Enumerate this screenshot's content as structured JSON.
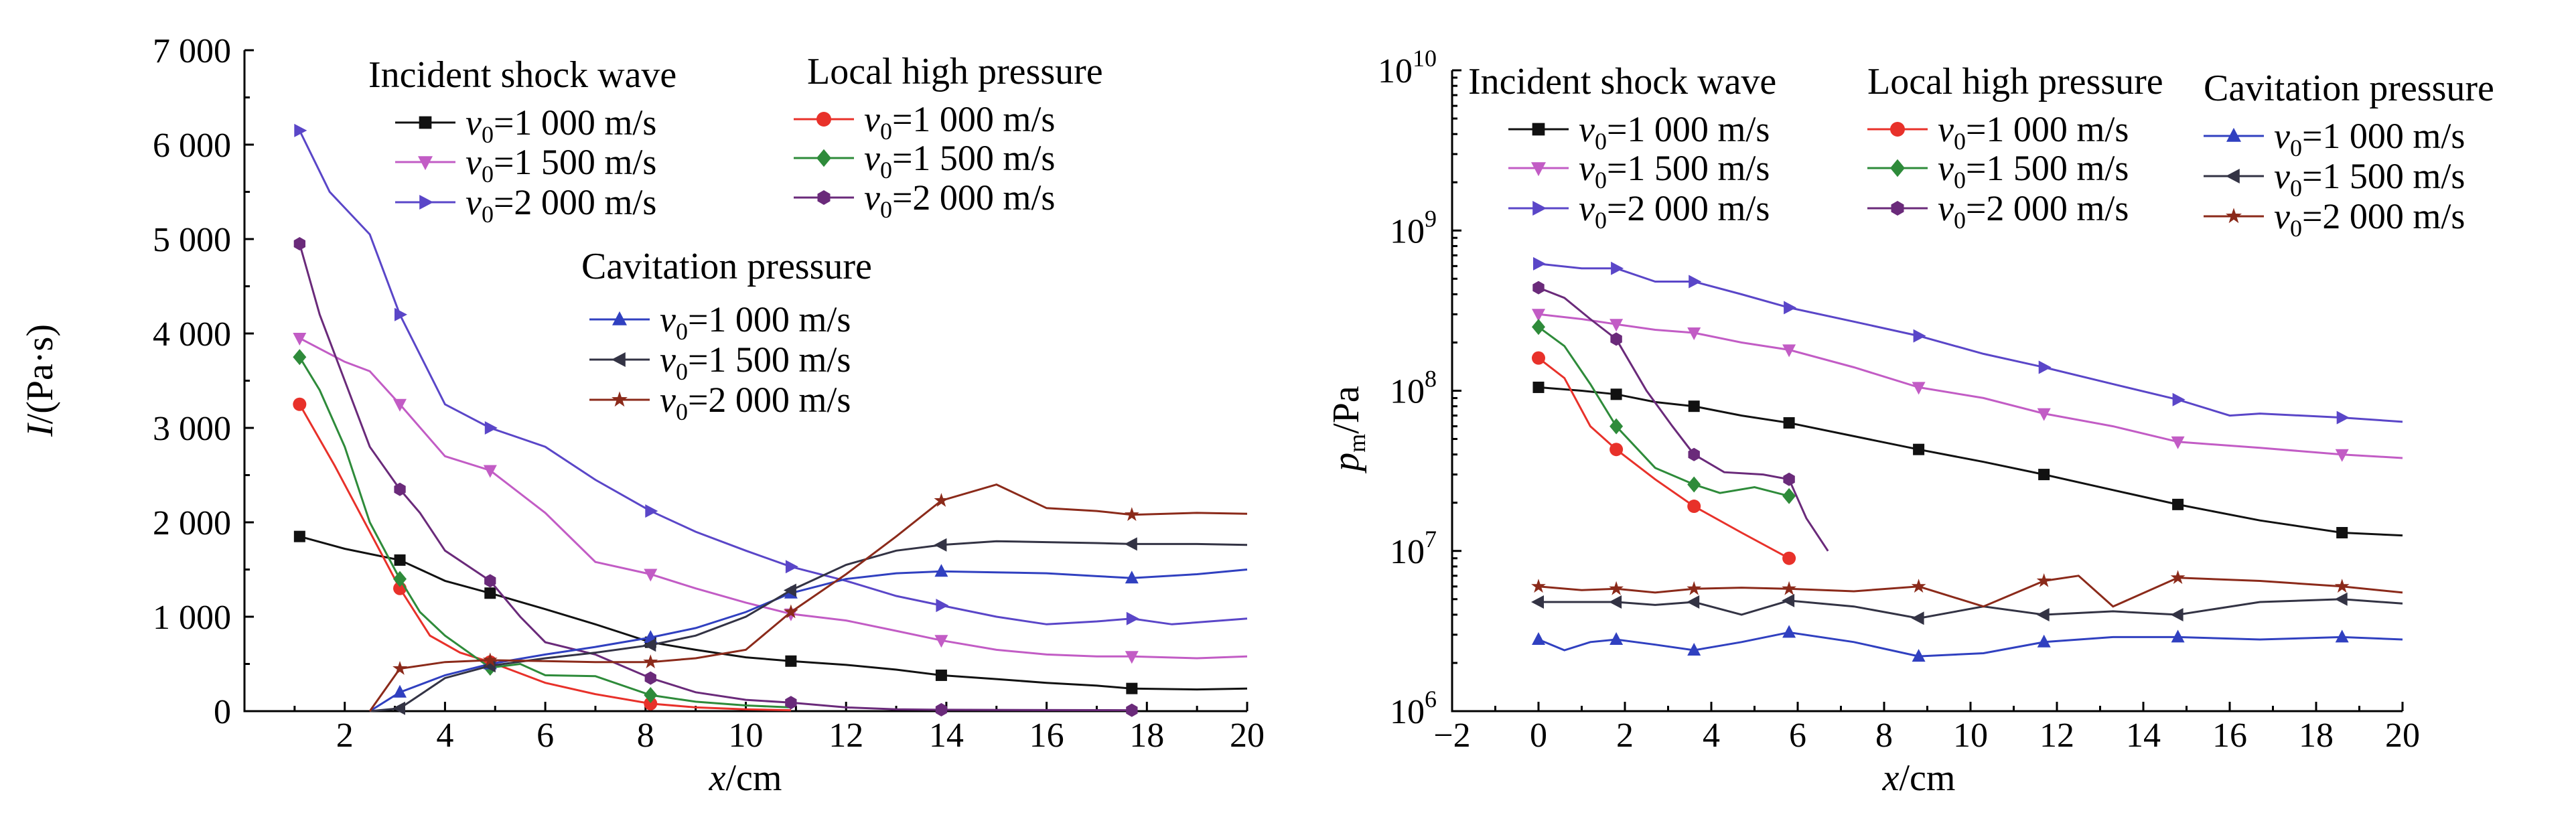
{
  "colors": {
    "black": "#111111",
    "magenta": "#c25cc5",
    "blue_purple": "#5a46c8",
    "red": "#e8312a",
    "green": "#2e8b3a",
    "purple": "#6a2a7a",
    "blue": "#3040c0",
    "dark": "#333344",
    "brown": "#8b2a1a"
  },
  "chart_data": [
    {
      "type": "line",
      "xlabel": "x/cm",
      "ylabel": "I/(Pa·s)",
      "xlim": [
        0,
        20
      ],
      "ylim": [
        0,
        7000
      ],
      "xticks": [
        "2",
        "4",
        "6",
        "8",
        "10",
        "12",
        "14",
        "16",
        "18",
        "20"
      ],
      "yticks": [
        "0",
        "1 000",
        "2 000",
        "3 000",
        "4 000",
        "5 000",
        "6 000",
        "7 000"
      ],
      "legend_groups": [
        {
          "title": "Incident shock wave",
          "entries": [
            "v0=1 000 m/s",
            "v0=1 500 m/s",
            "v0=2 000 m/s"
          ]
        },
        {
          "title": "Local high pressure",
          "entries": [
            "v0=1 000 m/s",
            "v0=1 500 m/s",
            "v0=2 000 m/s"
          ]
        },
        {
          "title": "Cavitation pressure",
          "entries": [
            "v0=1 000 m/s",
            "v0=1 500 m/s",
            "v0=2 000 m/s"
          ]
        }
      ],
      "series": [
        {
          "group": "Incident shock wave",
          "color": "#111111",
          "marker": "square",
          "markers_at": [
            1.1,
            3.1,
            4.9,
            8.1,
            10.9,
            13.9,
            17.7
          ],
          "x": [
            1.1,
            2,
            3.1,
            4,
            4.9,
            6,
            7,
            8.1,
            9,
            10,
            10.9,
            12,
            13,
            13.9,
            15,
            16,
            17,
            17.7,
            19,
            20
          ],
          "y": [
            1850,
            1720,
            1600,
            1380,
            1250,
            1080,
            920,
            730,
            650,
            570,
            530,
            490,
            440,
            380,
            340,
            300,
            270,
            240,
            230,
            240
          ]
        },
        {
          "group": "Incident shock wave",
          "color": "#c25cc5",
          "marker": "tri-down",
          "markers_at": [
            1.1,
            3.1,
            4.9,
            8.1,
            10.9,
            13.9,
            17.7
          ],
          "x": [
            1.1,
            2,
            2.5,
            3.1,
            4,
            4.9,
            6,
            7,
            8.1,
            9,
            10,
            10.9,
            12,
            13,
            13.9,
            15,
            16,
            17,
            17.7,
            19,
            20
          ],
          "y": [
            3950,
            3700,
            3600,
            3250,
            2700,
            2550,
            2100,
            1580,
            1450,
            1300,
            1150,
            1030,
            960,
            850,
            750,
            650,
            600,
            580,
            580,
            560,
            580
          ]
        },
        {
          "group": "Incident shock wave",
          "color": "#5a46c8",
          "marker": "tri-right",
          "markers_at": [
            1.1,
            3.1,
            4.9,
            8.1,
            10.9,
            13.9,
            17.7
          ],
          "x": [
            1.1,
            1.7,
            2.5,
            3.1,
            4,
            4.9,
            6,
            7,
            8.1,
            9,
            10,
            10.9,
            12,
            13,
            13.9,
            15,
            16,
            17,
            17.7,
            18.5,
            20
          ],
          "y": [
            6150,
            5500,
            5050,
            4200,
            3250,
            3000,
            2800,
            2450,
            2120,
            1900,
            1700,
            1530,
            1380,
            1220,
            1120,
            1000,
            920,
            950,
            980,
            920,
            980
          ]
        },
        {
          "group": "Local high pressure",
          "color": "#e8312a",
          "marker": "circle",
          "markers_at": [
            1.1,
            3.1,
            4.9,
            8.1
          ],
          "x": [
            1.1,
            1.8,
            2.5,
            3.1,
            3.7,
            4.3,
            4.9,
            6,
            7,
            8.1,
            9,
            10,
            10.9
          ],
          "y": [
            3250,
            2600,
            1900,
            1300,
            800,
            620,
            520,
            300,
            180,
            80,
            40,
            20,
            10
          ]
        },
        {
          "group": "Local high pressure",
          "color": "#2e8b3a",
          "marker": "diamond",
          "markers_at": [
            1.1,
            3.1,
            4.9,
            8.1
          ],
          "x": [
            1.1,
            1.5,
            2,
            2.5,
            3.1,
            3.5,
            4,
            4.9,
            5.5,
            6,
            7,
            8.1,
            9,
            10,
            10.9
          ],
          "y": [
            3750,
            3400,
            2800,
            2000,
            1400,
            1050,
            800,
            460,
            500,
            380,
            370,
            170,
            100,
            60,
            40
          ]
        },
        {
          "group": "Local high pressure",
          "color": "#6a2a7a",
          "marker": "hexagon",
          "markers_at": [
            1.1,
            3.1,
            4.9,
            8.1,
            10.9,
            13.9,
            17.7
          ],
          "x": [
            1.1,
            1.5,
            2,
            2.5,
            3.1,
            3.5,
            4,
            4.9,
            5.5,
            6,
            7,
            8.1,
            9,
            10,
            10.9,
            12,
            13,
            13.9,
            17.7
          ],
          "y": [
            4950,
            4200,
            3500,
            2800,
            2350,
            2100,
            1700,
            1380,
            1000,
            730,
            600,
            350,
            200,
            120,
            90,
            40,
            20,
            15,
            10
          ]
        },
        {
          "group": "Cavitation pressure",
          "color": "#3040c0",
          "marker": "tri-up",
          "markers_at": [
            3.1,
            4.9,
            8.1,
            10.9,
            13.9,
            17.7
          ],
          "x": [
            2.5,
            3.1,
            4,
            4.9,
            6,
            7,
            8.1,
            9,
            10,
            10.9,
            12,
            13,
            13.9,
            15,
            16,
            17,
            17.7,
            19,
            20
          ],
          "y": [
            0,
            200,
            380,
            500,
            600,
            680,
            780,
            880,
            1050,
            1250,
            1400,
            1460,
            1480,
            1470,
            1460,
            1430,
            1410,
            1450,
            1500
          ]
        },
        {
          "group": "Cavitation pressure",
          "color": "#333344",
          "marker": "tri-left",
          "markers_at": [
            3.1,
            4.9,
            8.1,
            10.9,
            13.9,
            17.7
          ],
          "x": [
            2.5,
            3.1,
            4,
            4.9,
            6,
            7,
            8.1,
            9,
            10,
            10.9,
            12,
            13,
            13.9,
            15,
            16,
            17,
            17.7,
            19,
            20
          ],
          "y": [
            0,
            30,
            350,
            480,
            560,
            620,
            700,
            800,
            1000,
            1280,
            1550,
            1700,
            1760,
            1800,
            1790,
            1780,
            1770,
            1770,
            1760
          ]
        },
        {
          "group": "Cavitation pressure",
          "color": "#8b2a1a",
          "marker": "star",
          "markers_at": [
            3.1,
            4.9,
            8.1,
            10.9,
            13.9,
            17.7
          ],
          "x": [
            2.5,
            3.1,
            4,
            4.9,
            6,
            7,
            8.1,
            9,
            10,
            10.9,
            12,
            13,
            13.9,
            15,
            16,
            17,
            17.7,
            19,
            20
          ],
          "y": [
            0,
            450,
            520,
            540,
            530,
            520,
            520,
            560,
            650,
            1050,
            1450,
            1850,
            2230,
            2400,
            2150,
            2120,
            2080,
            2100,
            2090
          ]
        }
      ]
    },
    {
      "type": "line",
      "xlabel": "x/cm",
      "ylabel": "pm/Pa",
      "y_scale": "log",
      "xlim": [
        -2,
        20
      ],
      "ylim": [
        1000000,
        10000000000
      ],
      "xticks": [
        "−2",
        "0",
        "2",
        "4",
        "6",
        "8",
        "10",
        "12",
        "14",
        "16",
        "18",
        "20"
      ],
      "yticks": [
        "10^6",
        "10^7",
        "10^8",
        "10^9",
        "10^10"
      ],
      "legend_groups": [
        {
          "title": "Incident shock wave",
          "entries": [
            "v0=1 000 m/s",
            "v0=1 500 m/s",
            "v0=2 000 m/s"
          ]
        },
        {
          "title": "Local high pressure",
          "entries": [
            "v0=1 000 m/s",
            "v0=1 500 m/s",
            "v0=2 000 m/s"
          ]
        },
        {
          "title": "Cavitation pressure",
          "entries": [
            "v0=1 000 m/s",
            "v0=1 500 m/s",
            "v0=2 000 m/s"
          ]
        }
      ],
      "series": [
        {
          "group": "Incident shock wave",
          "color": "#111111",
          "marker": "square",
          "markers_at": [
            0,
            1.8,
            3.6,
            5.8,
            8.8,
            11.7,
            14.8,
            18.6
          ],
          "x": [
            0,
            1,
            1.8,
            2.7,
            3.6,
            4.7,
            5.8,
            7.3,
            8.8,
            10.3,
            11.7,
            13.3,
            14.8,
            16.7,
            18.6,
            20
          ],
          "y": [
            105000000,
            100000000,
            95000000,
            85000000,
            80000000,
            70000000,
            63000000,
            52000000,
            43000000,
            36000000,
            30000000,
            24000000,
            19500000,
            15500000,
            13000000,
            12500000
          ]
        },
        {
          "group": "Incident shock wave",
          "color": "#c25cc5",
          "marker": "tri-down",
          "markers_at": [
            0,
            1.8,
            3.6,
            5.8,
            8.8,
            11.7,
            14.8,
            18.6
          ],
          "x": [
            0,
            1,
            1.8,
            2.7,
            3.6,
            4.7,
            5.8,
            7.3,
            8.8,
            10.3,
            11.7,
            13.3,
            14.8,
            16.7,
            18.6,
            20
          ],
          "y": [
            300000000,
            280000000,
            260000000,
            240000000,
            230000000,
            200000000,
            180000000,
            140000000,
            105000000,
            90000000,
            72000000,
            60000000,
            48000000,
            44000000,
            40000000,
            38000000
          ]
        },
        {
          "group": "Incident shock wave",
          "color": "#5a46c8",
          "marker": "tri-right",
          "markers_at": [
            0,
            1.8,
            3.6,
            5.8,
            8.8,
            11.7,
            14.8,
            18.6
          ],
          "x": [
            0,
            1,
            1.8,
            2.7,
            3.6,
            4.7,
            5.8,
            7.3,
            8.8,
            10.3,
            11.7,
            13.3,
            14.8,
            16,
            16.7,
            18.6,
            20
          ],
          "y": [
            620000000,
            580000000,
            580000000,
            480000000,
            480000000,
            400000000,
            330000000,
            270000000,
            220000000,
            170000000,
            140000000,
            110000000,
            88000000,
            70000000,
            72000000,
            68000000,
            64000000
          ]
        },
        {
          "group": "Local high pressure",
          "color": "#e8312a",
          "marker": "circle",
          "markers_at": [
            0,
            1.8,
            3.6,
            5.8
          ],
          "x": [
            0,
            0.6,
            1.2,
            1.8,
            2.7,
            3.6,
            4.7,
            5.8
          ],
          "y": [
            160000000,
            120000000,
            60000000,
            43000000,
            28000000,
            19000000,
            13000000,
            9000000
          ]
        },
        {
          "group": "Local high pressure",
          "color": "#2e8b3a",
          "marker": "diamond",
          "markers_at": [
            0,
            1.8,
            3.6,
            5.8
          ],
          "x": [
            0,
            0.6,
            1.2,
            1.8,
            2.7,
            3.6,
            4.2,
            5,
            5.8
          ],
          "y": [
            250000000,
            190000000,
            110000000,
            60000000,
            33000000,
            26000000,
            23000000,
            25000000,
            22000000
          ]
        },
        {
          "group": "Local high pressure",
          "color": "#6a2a7a",
          "marker": "hexagon",
          "markers_at": [
            0,
            1.8,
            3.6,
            5.8
          ],
          "x": [
            0,
            0.6,
            1.2,
            1.8,
            2.5,
            3.1,
            3.6,
            4.3,
            5.2,
            5.8,
            6.2,
            6.7
          ],
          "y": [
            440000000,
            380000000,
            280000000,
            210000000,
            100000000,
            60000000,
            40000000,
            31000000,
            30000000,
            28000000,
            16000000,
            10000000
          ]
        },
        {
          "group": "Cavitation pressure",
          "color": "#3040c0",
          "marker": "tri-up",
          "markers_at": [
            0,
            1.8,
            3.6,
            5.8,
            8.8,
            11.7,
            14.8,
            18.6
          ],
          "x": [
            0,
            0.6,
            1.2,
            1.8,
            2.7,
            3.6,
            4.7,
            5.8,
            7.3,
            8.8,
            10.3,
            11.7,
            13.3,
            14.8,
            16.7,
            18.6,
            20
          ],
          "y": [
            2800000,
            2400000,
            2700000,
            2800000,
            2600000,
            2400000,
            2700000,
            3100000,
            2700000,
            2200000,
            2300000,
            2700000,
            2900000,
            2900000,
            2800000,
            2900000,
            2800000
          ]
        },
        {
          "group": "Cavitation pressure",
          "color": "#333344",
          "marker": "tri-left",
          "markers_at": [
            0,
            1.8,
            3.6,
            5.8,
            8.8,
            11.7,
            14.8,
            18.6
          ],
          "x": [
            0,
            1,
            1.8,
            2.7,
            3.6,
            4.7,
            5.8,
            7.3,
            8.8,
            10.3,
            11.7,
            13.3,
            14.8,
            16.7,
            18.6,
            20
          ],
          "y": [
            4800000,
            4800000,
            4800000,
            4600000,
            4800000,
            4000000,
            4900000,
            4500000,
            3800000,
            4500000,
            4000000,
            4200000,
            4000000,
            4800000,
            5000000,
            4700000
          ]
        },
        {
          "group": "Cavitation pressure",
          "color": "#8b2a1a",
          "marker": "star",
          "markers_at": [
            0,
            1.8,
            3.6,
            5.8,
            8.8,
            11.7,
            14.8,
            18.6
          ],
          "x": [
            0,
            1,
            1.8,
            2.7,
            3.6,
            4.7,
            5.8,
            7.3,
            8.8,
            10.3,
            11.7,
            12.5,
            13.3,
            14.8,
            16.7,
            18.6,
            20
          ],
          "y": [
            6000000,
            5700000,
            5800000,
            5500000,
            5800000,
            5900000,
            5800000,
            5600000,
            6000000,
            4500000,
            6500000,
            7000000,
            4500000,
            6800000,
            6500000,
            6000000,
            5500000
          ]
        }
      ]
    }
  ],
  "legend_left": {
    "group1_title": "Incident shock wave",
    "group2_title": "Local high pressure",
    "group3_title": "Cavitation pressure"
  },
  "legend_right": {
    "group1_title": "Incident shock wave",
    "group2_title": "Local high pressure",
    "group3_title": "Cavitation pressure"
  },
  "legend_entries": {
    "v": "v",
    "sub": "0",
    "e1": "=1 000 m/s",
    "e2": "=1 500 m/s",
    "e3": "=2 000 m/s"
  },
  "left_axis": {
    "ylabel_main": "I",
    "ylabel_rest": "/(Pa·s)",
    "xlabel_main": "x",
    "xlabel_rest": "/cm"
  },
  "right_axis": {
    "ylabel_main": "p",
    "ylabel_sub": "m",
    "ylabel_rest": "/Pa",
    "xlabel_main": "x",
    "xlabel_rest": "/cm",
    "ytick_base": "10",
    "ytick_exps": [
      "6",
      "7",
      "8",
      "9",
      "10"
    ]
  }
}
